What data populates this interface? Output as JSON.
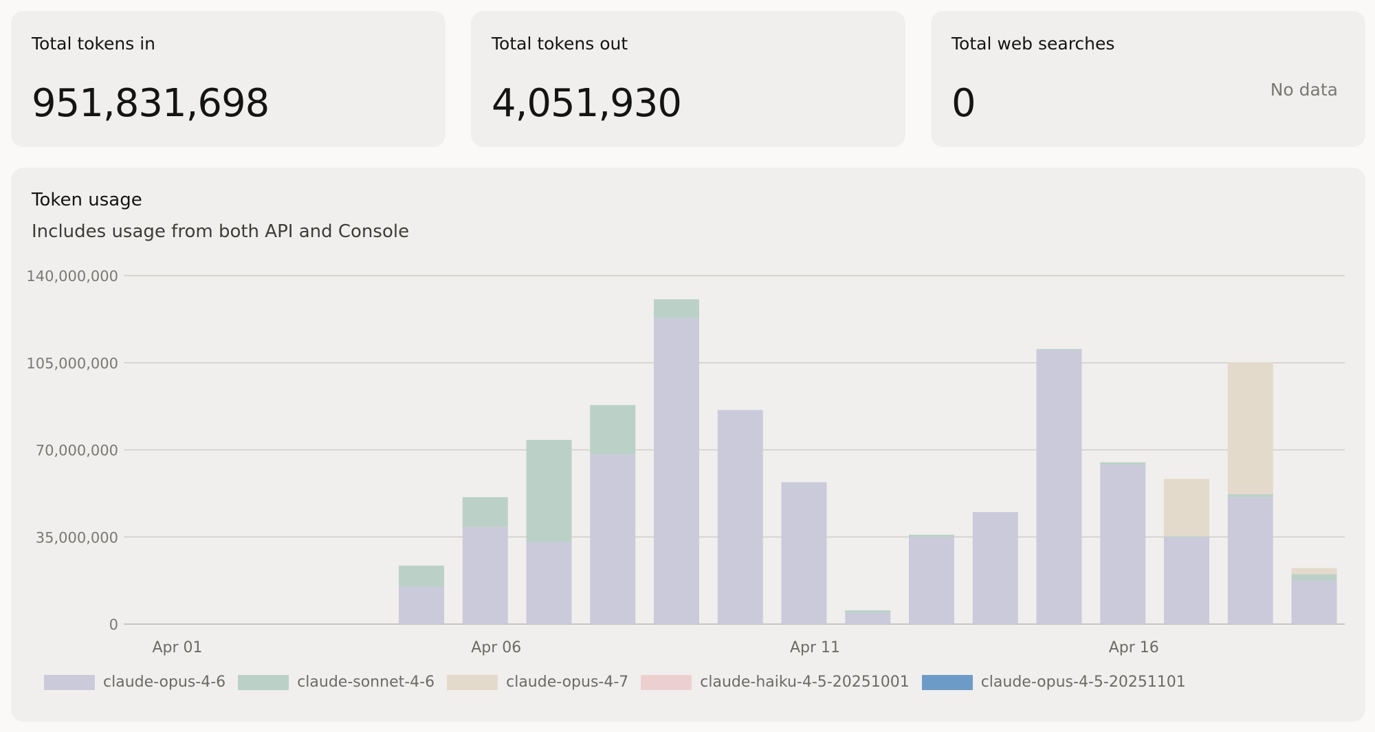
{
  "stats": {
    "tokens_in": {
      "label": "Total tokens in",
      "value": "951,831,698"
    },
    "tokens_out": {
      "label": "Total tokens out",
      "value": "4,051,930"
    },
    "web_searches": {
      "label": "Total web searches",
      "value": "0",
      "status": "No data"
    }
  },
  "chart_data": {
    "type": "bar",
    "stacked": true,
    "title": "Token usage",
    "subtitle": "Includes usage from both API and Console",
    "xlabel": "",
    "ylabel": "",
    "ylim": [
      0,
      140000000
    ],
    "y_ticks": [
      0,
      35000000,
      70000000,
      105000000,
      140000000
    ],
    "y_tick_labels": [
      "0",
      "35,000,000",
      "70,000,000",
      "105,000,000",
      "140,000,000"
    ],
    "categories": [
      "Apr 01",
      "Apr 02",
      "Apr 03",
      "Apr 04",
      "Apr 05",
      "Apr 06",
      "Apr 07",
      "Apr 08",
      "Apr 09",
      "Apr 10",
      "Apr 11",
      "Apr 12",
      "Apr 13",
      "Apr 14",
      "Apr 15",
      "Apr 16",
      "Apr 17",
      "Apr 18",
      "Apr 19",
      "Apr 20"
    ],
    "x_tick_labels": [
      {
        "index": 0,
        "label": "Apr 01"
      },
      {
        "index": 5,
        "label": "Apr 06"
      },
      {
        "index": 10,
        "label": "Apr 11"
      },
      {
        "index": 15,
        "label": "Apr 16"
      }
    ],
    "grid": true,
    "legend_position": "bottom-left",
    "series": [
      {
        "name": "claude-opus-4-6",
        "color": "#cbcadb",
        "values": [
          0,
          0,
          0,
          0,
          15000000,
          39000000,
          33000000,
          68000000,
          123000000,
          86000000,
          57000000,
          4500000,
          35000000,
          45000000,
          110000000,
          64000000,
          35000000,
          51000000,
          17500000,
          0
        ]
      },
      {
        "name": "claude-sonnet-4-6",
        "color": "#bbd1c8",
        "values": [
          0,
          0,
          0,
          0,
          8500000,
          12000000,
          41000000,
          20000000,
          7500000,
          0,
          0,
          1000000,
          900000,
          0,
          500000,
          1000000,
          300000,
          1200000,
          2500000,
          0
        ]
      },
      {
        "name": "claude-opus-4-7",
        "color": "#e3dacb",
        "values": [
          0,
          0,
          0,
          0,
          0,
          0,
          0,
          0,
          0,
          0,
          0,
          0,
          0,
          0,
          0,
          0,
          23000000,
          53000000,
          2500000,
          0
        ]
      },
      {
        "name": "claude-haiku-4-5-20251001",
        "color": "#ecd0cf",
        "values": [
          0,
          0,
          0,
          0,
          0,
          0,
          0,
          0,
          0,
          0,
          0,
          0,
          0,
          0,
          0,
          0,
          0,
          0,
          0,
          0
        ]
      },
      {
        "name": "claude-opus-4-5-20251101",
        "color": "#6d9bc8",
        "values": [
          0,
          0,
          0,
          0,
          0,
          0,
          0,
          0,
          0,
          0,
          0,
          0,
          0,
          0,
          0,
          0,
          0,
          0,
          0,
          0
        ]
      }
    ]
  }
}
